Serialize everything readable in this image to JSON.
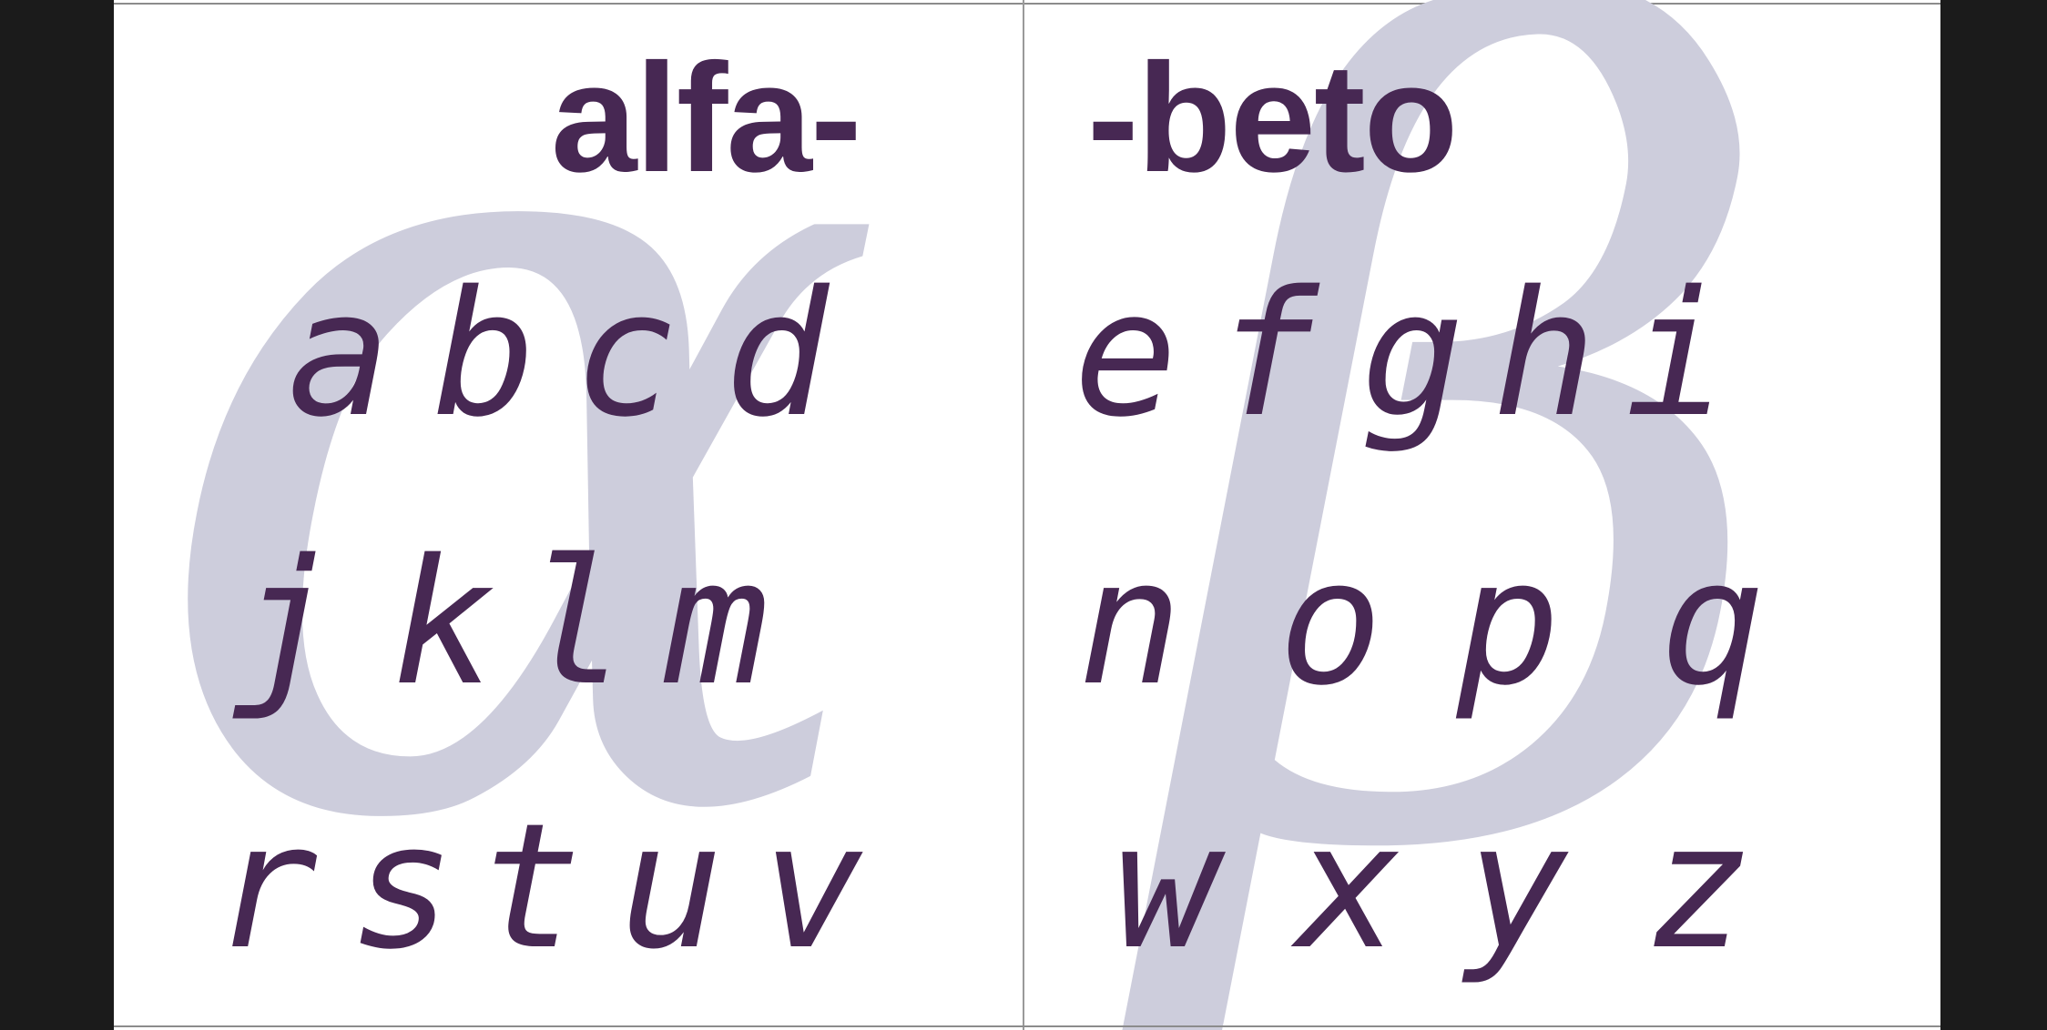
{
  "colors": {
    "outside": "#1b1b1b",
    "paper": "#ffffff",
    "ink": "#472853",
    "background_glyph": "#cdcddc"
  },
  "spread": {
    "left": {
      "title": "alfa-",
      "background_glyph": "α",
      "rows": [
        [
          "a",
          "b",
          "c",
          "d"
        ],
        [
          "j",
          "k",
          "l",
          "m"
        ],
        [
          "r",
          "s",
          "t",
          "u",
          "v"
        ]
      ]
    },
    "right": {
      "title": "-beto",
      "background_glyph": "β",
      "rows": [
        [
          "e",
          "f",
          "g",
          "h",
          "i"
        ],
        [
          "n",
          "o",
          "p",
          "q"
        ],
        [
          "w",
          "x",
          "y",
          "z"
        ]
      ]
    }
  }
}
